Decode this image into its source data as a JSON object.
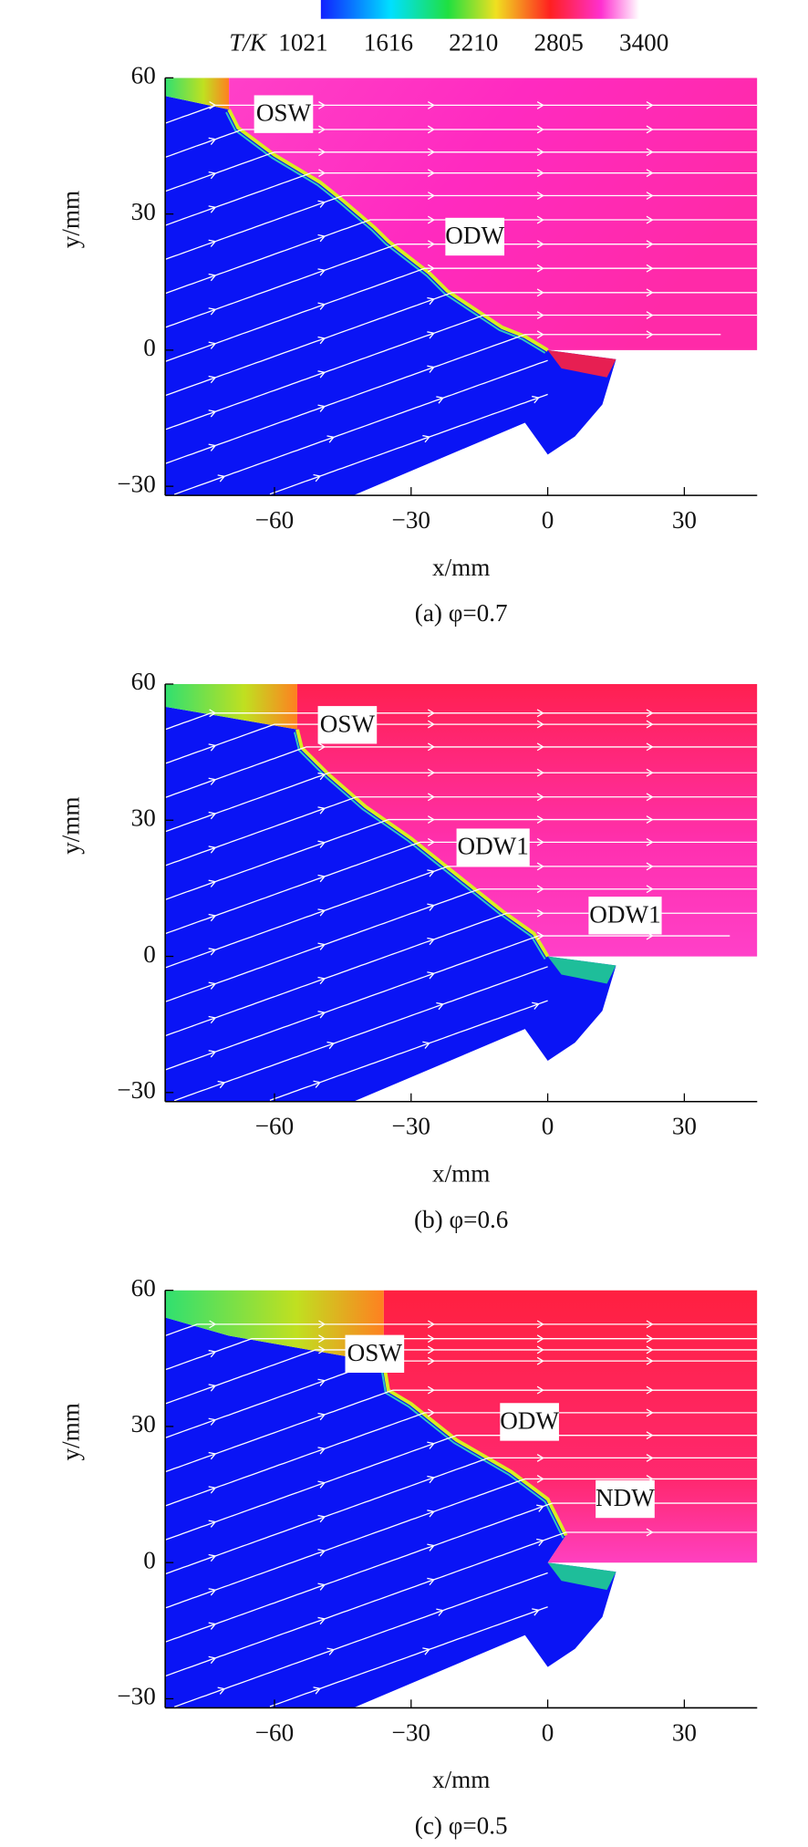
{
  "colorbar": {
    "label": "T/K",
    "ticks": [
      1021,
      1616,
      2210,
      2805,
      3400
    ]
  },
  "chart_data": [
    {
      "type": "contour",
      "caption": "(a) φ=0.7",
      "xlabel": "x/mm",
      "ylabel": "y/mm",
      "xlim": [
        -84,
        46
      ],
      "ylim": [
        -32,
        60
      ],
      "xticks": [
        {
          "value": -60,
          "label": "−60"
        },
        {
          "value": -30,
          "label": "−30"
        },
        0,
        30
      ],
      "yticks": [
        {
          "value": -30,
          "label": "−30"
        },
        0,
        30,
        60
      ],
      "annotations": [
        "OSW",
        "ODW"
      ]
    },
    {
      "type": "contour",
      "caption": "(b) φ=0.6",
      "xlabel": "x/mm",
      "ylabel": "y/mm",
      "xlim": [
        -84,
        46
      ],
      "ylim": [
        -32,
        60
      ],
      "xticks": [
        {
          "value": -60,
          "label": "−60"
        },
        {
          "value": -30,
          "label": "−30"
        },
        0,
        30
      ],
      "yticks": [
        {
          "value": -30,
          "label": "−30"
        },
        0,
        30,
        60
      ],
      "annotations": [
        "OSW",
        "ODW1",
        "ODW1"
      ]
    },
    {
      "type": "contour",
      "caption": "(c) φ=0.5",
      "xlabel": "x/mm",
      "ylabel": "y/mm",
      "xlim": [
        -84,
        46
      ],
      "ylim": [
        -32,
        60
      ],
      "xticks": [
        {
          "value": -60,
          "label": "−60"
        },
        {
          "value": -30,
          "label": "−30"
        },
        0,
        30
      ],
      "yticks": [
        {
          "value": -30,
          "label": "−30"
        },
        0,
        30,
        60
      ],
      "annotations": [
        "OSW",
        "ODW",
        "NDW"
      ]
    }
  ]
}
